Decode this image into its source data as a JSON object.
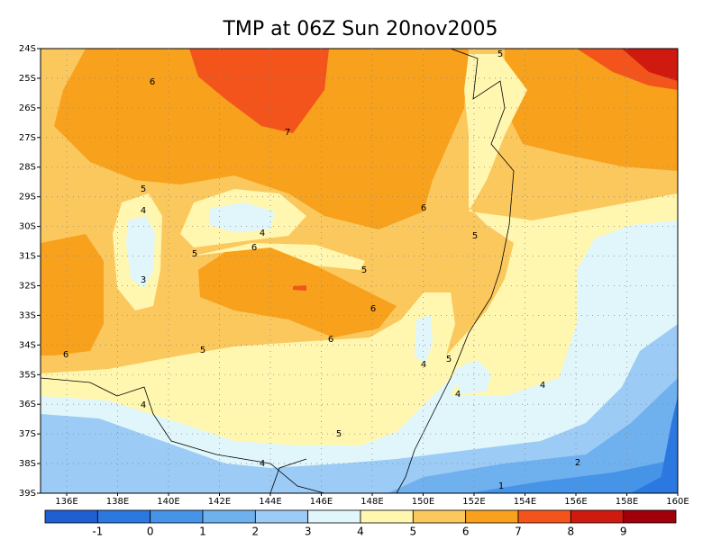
{
  "title": "TMP at 06Z Sun 20nov2005",
  "lat_ticks": [
    "24S",
    "25S",
    "26S",
    "27S",
    "28S",
    "29S",
    "30S",
    "31S",
    "32S",
    "33S",
    "34S",
    "35S",
    "36S",
    "37S",
    "38S",
    "39S"
  ],
  "lon_ticks": [
    "136E",
    "138E",
    "140E",
    "142E",
    "144E",
    "146E",
    "148E",
    "150E",
    "152E",
    "154E",
    "156E",
    "158E",
    "160E"
  ],
  "colorbar": {
    "levels": [
      -1,
      0,
      1,
      2,
      3,
      4,
      5,
      6,
      7,
      8,
      9
    ],
    "colors": [
      "#1e5fd2",
      "#2a78e0",
      "#4594e8",
      "#6fb0ef",
      "#9ccbf5",
      "#e0f6fb",
      "#fff6b0",
      "#fbc85e",
      "#f7a11c",
      "#f3541b",
      "#cf1a10",
      "#a0000a"
    ]
  },
  "contour_labels": [
    "6",
    "7",
    "5",
    "5",
    "4",
    "3",
    "4",
    "6",
    "5",
    "5",
    "6",
    "5",
    "6",
    "6",
    "5",
    "6",
    "4",
    "5",
    "4",
    "4",
    "4",
    "5",
    "4",
    "2",
    "1"
  ]
}
